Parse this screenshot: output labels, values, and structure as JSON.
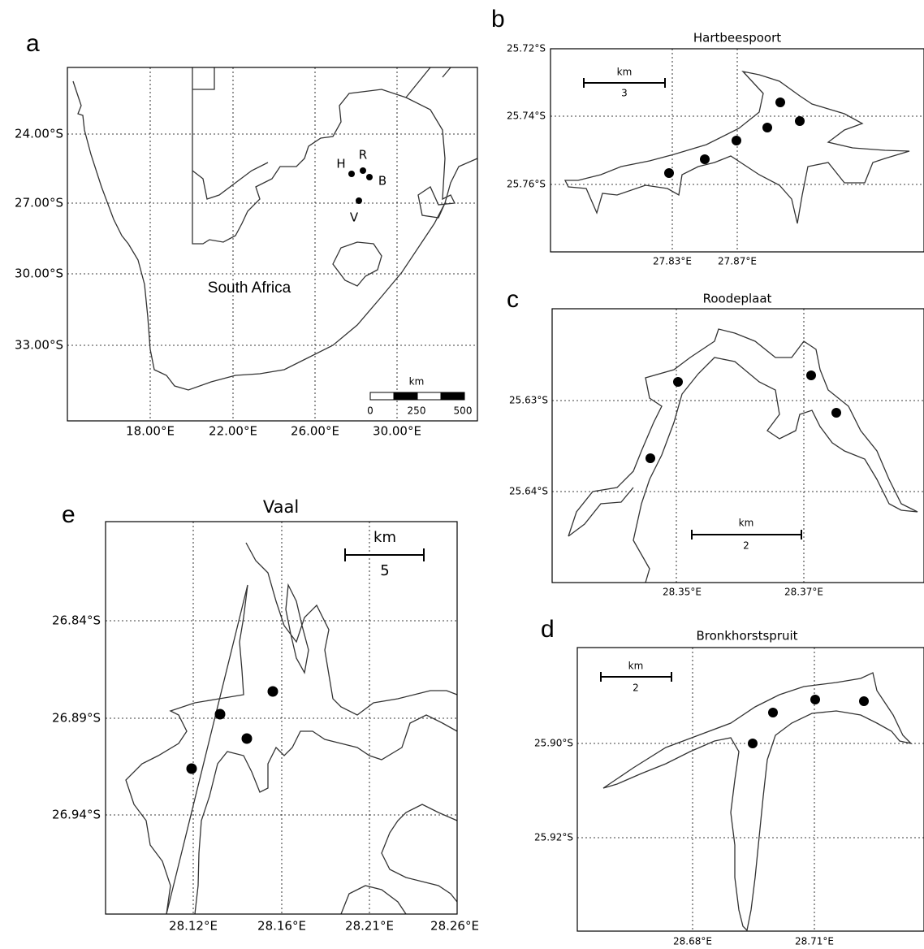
{
  "panels": [
    {
      "letter": "a",
      "country": "South Africa",
      "sites": [
        "H",
        "R",
        "B",
        "V"
      ],
      "xticks": [
        "18.00°E",
        "22.00°E",
        "26.00°E",
        "30.00°E"
      ],
      "yticks": [
        "24.00°S",
        "27.00°S",
        "30.00°S",
        "33.00°S"
      ],
      "scale": {
        "unit": "km",
        "ticks": [
          "0",
          "250",
          "500"
        ]
      }
    },
    {
      "letter": "b",
      "title": "Hartbeespoort",
      "xticks": [
        "27.83°E",
        "27.87°E"
      ],
      "yticks": [
        "25.72°S",
        "25.74°S",
        "25.76°S"
      ],
      "scale": {
        "unit": "km",
        "length": "3"
      }
    },
    {
      "letter": "c",
      "title": "Roodeplaat",
      "xticks": [
        "28.35°E",
        "28.37°E"
      ],
      "yticks": [
        "25.63°S",
        "25.64°S"
      ],
      "scale": {
        "unit": "km",
        "length": "2"
      }
    },
    {
      "letter": "d",
      "title": "Bronkhorstspruit",
      "xticks": [
        "28.68°E",
        "28.71°E"
      ],
      "yticks": [
        "25.90°S",
        "25.92°S"
      ],
      "scale": {
        "unit": "km",
        "length": "2"
      }
    },
    {
      "letter": "e",
      "title": "Vaal",
      "xticks": [
        "28.12°E",
        "28.16°E",
        "28.21°E",
        "28.26°E"
      ],
      "yticks": [
        "26.84°S",
        "26.89°S",
        "26.94°S"
      ],
      "scale": {
        "unit": "km",
        "length": "5"
      }
    }
  ]
}
